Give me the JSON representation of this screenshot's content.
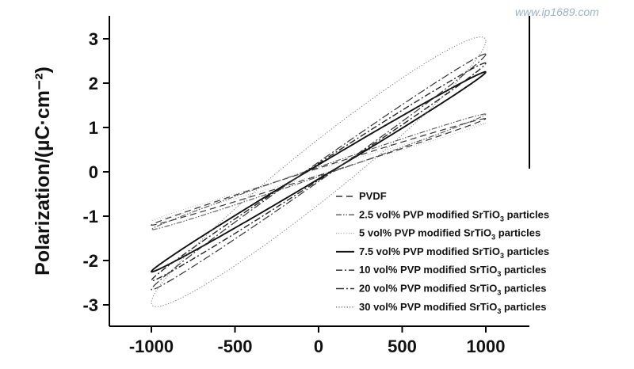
{
  "watermark": "www.ip1689.com",
  "chart_data": {
    "type": "line",
    "title": "",
    "xlabel": "",
    "ylabel": "Polarization/(µC·cm⁻²)",
    "xlim": [
      -1250,
      1250
    ],
    "ylim": [
      -3.5,
      3.5
    ],
    "x_ticks": [
      -1000,
      -500,
      0,
      500,
      1000
    ],
    "y_ticks": [
      -3,
      -2,
      -1,
      0,
      1,
      2,
      3
    ],
    "legend_position": "lower-right",
    "series": [
      {
        "name": "PVDF",
        "legend": "PVDF",
        "style": "dashed",
        "color": "#333333",
        "Pmax": 1.2,
        "Pr": 0.12,
        "linear": 0.3,
        "phase": 0.1
      },
      {
        "name": "2.5 vol% PVP modified SrTiO3 particles",
        "legend_main": "2.5 vol% PVP modified SrTiO",
        "legend_sub": "3",
        "legend_tail": " particles",
        "style": "dash-dot-dot",
        "color": "#555555",
        "Pmax": 1.3,
        "Pr": 0.18,
        "linear": 0.3,
        "phase": 0.12
      },
      {
        "name": "5 vol% PVP modified SrTiO3 particles",
        "legend_main": "5 vol%  PVP modified SrTiO",
        "legend_sub": "3",
        "legend_tail": " particles",
        "style": "none",
        "color": "#777777",
        "Pmax": 1.1,
        "Pr": 0.1,
        "linear": 0.3,
        "phase": 0.08
      },
      {
        "name": "7.5 vol% PVP modified SrTiO3 particles",
        "legend_main": "7.5 vol% PVP modified SrTiO",
        "legend_sub": "3",
        "legend_tail": " particles",
        "style": "solid",
        "color": "#111111",
        "Pmax": 2.25,
        "Pr": 0.3,
        "linear": 0.45,
        "phase": 0.13
      },
      {
        "name": "10 vol% PVP modified SrTiO3 particles",
        "legend_main": "10 vol% PVP modified SrTiO",
        "legend_sub": "3",
        "legend_tail": " particles",
        "style": "dash-dot",
        "color": "#222222",
        "Pmax": 2.45,
        "Pr": 0.32,
        "linear": 0.45,
        "phase": 0.14
      },
      {
        "name": "20 vol% PVP modified SrTiO3 particles",
        "legend_main": "20 vol% PVP modified SrTiO",
        "legend_sub": "3",
        "legend_tail": " particles",
        "style": "dash-dot-long",
        "color": "#333333",
        "Pmax": 2.65,
        "Pr": 0.4,
        "linear": 0.45,
        "phase": 0.15
      },
      {
        "name": "30 vol% PVP modified SrTiO3 particles",
        "legend_main": "30 vol%  PVP modified SrTiO",
        "legend_sub": "3",
        "legend_tail": " particles",
        "style": "dotted",
        "color": "#666666",
        "Pmax": 2.95,
        "Pr": 0.95,
        "linear": 0.3,
        "phase": 0.35
      }
    ]
  }
}
